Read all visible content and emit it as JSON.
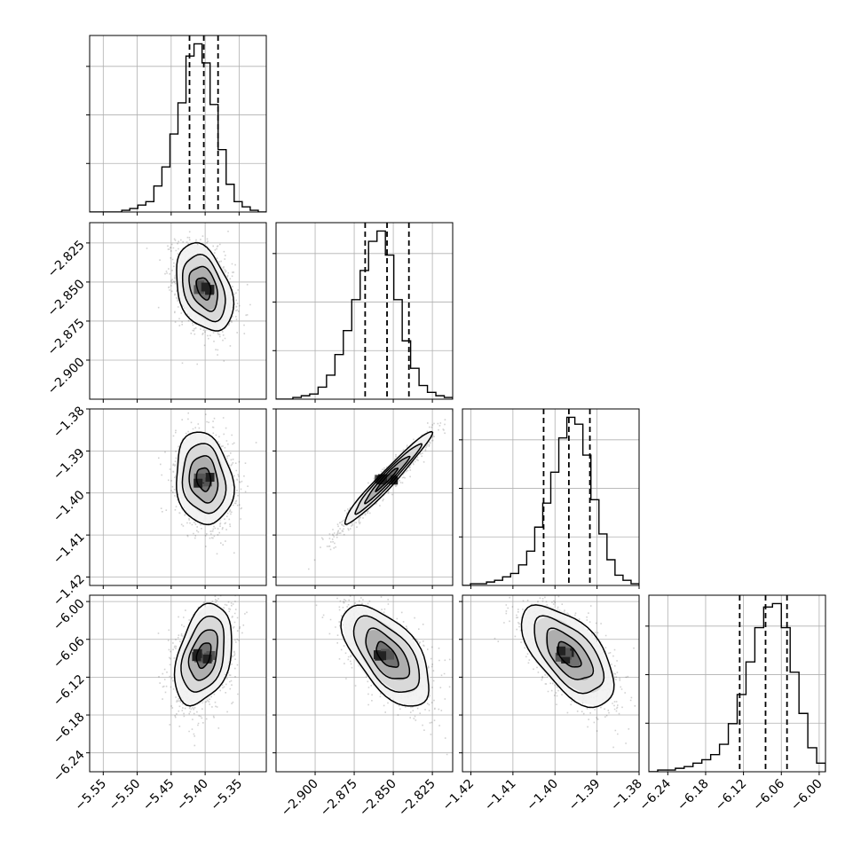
{
  "chart_data": {
    "type": "corner",
    "parameters": [
      {
        "range": [
          -5.57,
          -5.31
        ],
        "ticks": [
          -5.55,
          -5.5,
          -5.45,
          -5.4,
          -5.35
        ],
        "tick_labels": [
          "−5.55",
          "−5.50",
          "−5.45",
          "−5.40",
          "−5.35"
        ],
        "quantiles": [
          -5.423,
          -5.402,
          -5.381
        ],
        "hist": [
          0,
          0,
          0,
          0,
          1,
          2,
          4,
          6,
          15,
          26,
          45,
          63,
          90,
          97,
          86,
          62,
          36,
          16,
          6,
          3,
          1,
          0
        ],
        "median": -5.402,
        "sigma": 0.021
      },
      {
        "range": [
          -2.925,
          -2.812
        ],
        "ticks": [
          -2.9,
          -2.875,
          -2.85,
          -2.825
        ],
        "tick_labels": [
          "−2.900",
          "−2.875",
          "−2.850",
          "−2.825"
        ],
        "quantiles": [
          -2.868,
          -2.854,
          -2.84
        ],
        "hist": [
          0,
          0,
          1,
          2,
          3,
          7,
          14,
          26,
          40,
          58,
          75,
          92,
          98,
          84,
          58,
          34,
          18,
          8,
          4,
          2,
          1
        ],
        "median": -2.854,
        "sigma": 0.014
      },
      {
        "range": [
          -1.422,
          -1.38
        ],
        "ticks": [
          -1.42,
          -1.41,
          -1.4,
          -1.39,
          -1.38
        ],
        "tick_labels": [
          "−1.42",
          "−1.41",
          "−1.40",
          "−1.39",
          "−1.38"
        ],
        "quantiles": [
          -1.4027,
          -1.3967,
          -1.3917
        ],
        "hist": [
          0,
          1,
          1,
          2,
          3,
          5,
          7,
          12,
          20,
          34,
          48,
          66,
          86,
          98,
          94,
          76,
          50,
          30,
          15,
          6,
          3,
          1
        ],
        "median": -1.3967,
        "sigma": 0.0055
      },
      {
        "range": [
          -6.27,
          -5.99
        ],
        "ticks": [
          -6.24,
          -6.18,
          -6.12,
          -6.06,
          -6.0
        ],
        "tick_labels": [
          "−6.24",
          "−6.18",
          "−6.12",
          "−6.06",
          "−6.00"
        ],
        "quantiles": [
          -6.126,
          -6.085,
          -6.051
        ],
        "hist": [
          0,
          1,
          1,
          2,
          3,
          5,
          7,
          10,
          16,
          28,
          45,
          64,
          84,
          96,
          98,
          84,
          58,
          34,
          14,
          5
        ],
        "median": -6.085,
        "sigma": 0.04
      }
    ],
    "correlations": [
      [
        1.0,
        -0.35,
        -0.15,
        0.35
      ],
      [
        -0.35,
        1.0,
        0.97,
        -0.6
      ],
      [
        -0.15,
        0.97,
        1.0,
        -0.6
      ],
      [
        0.35,
        -0.6,
        -0.6,
        1.0
      ]
    ],
    "contour_levels_sigma": [
      0.5,
      1.0,
      1.5,
      2.0
    ],
    "title": "",
    "xlabel": "",
    "ylabel": "",
    "grid": true,
    "legend": "none",
    "colors": {
      "contour": "#000000",
      "hist": "#000000",
      "grid": "#b0b0b0",
      "points": "#000000"
    }
  }
}
